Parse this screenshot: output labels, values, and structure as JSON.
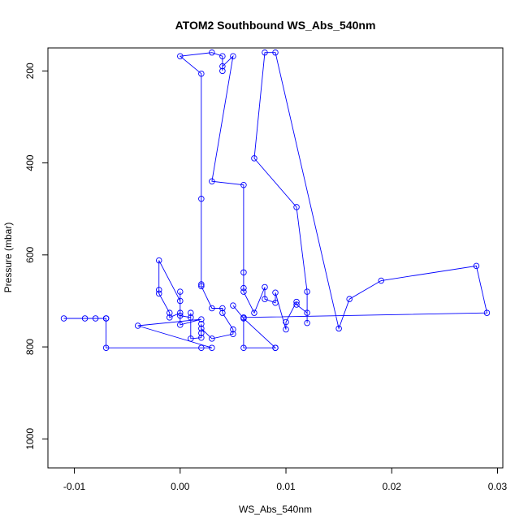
{
  "chart_data": {
    "type": "line",
    "title": "ATOM2 Southbound WS_Abs_540nm",
    "xlabel": "WS_Abs_540nm",
    "ylabel": "Pressure (mbar)",
    "xlim": [
      -0.0125,
      0.0305
    ],
    "ylim": [
      1063,
      150
    ],
    "y_reversed": true,
    "xticks": [
      "-0.01",
      "0.00",
      "0.01",
      "0.02",
      "0.03"
    ],
    "yticks": [
      "200",
      "400",
      "600",
      "800",
      "1000"
    ],
    "color": "#0000ff",
    "marker": "open-circle",
    "grid": false,
    "legend": "none",
    "series": [
      {
        "values": [
          [
            -0.011,
            738
          ],
          [
            -0.009,
            738
          ],
          [
            -0.008,
            738
          ],
          [
            -0.007,
            738
          ],
          [
            -0.007,
            738
          ],
          [
            -0.007,
            802
          ],
          [
            0.002,
            802
          ],
          [
            0.003,
            802
          ],
          [
            -0.004,
            754
          ],
          [
            0.002,
            740
          ],
          [
            0.0,
            752
          ],
          [
            0.0,
            680
          ],
          [
            0.0,
            700
          ],
          [
            -0.002,
            612
          ],
          [
            -0.002,
            676
          ],
          [
            -0.002,
            684
          ],
          [
            -0.001,
            726
          ],
          [
            -0.001,
            736
          ],
          [
            0.0,
            726
          ],
          [
            0.0,
            732
          ],
          [
            0.001,
            736
          ],
          [
            0.001,
            726
          ],
          [
            0.001,
            782
          ],
          [
            0.002,
            780
          ],
          [
            0.002,
            770
          ],
          [
            0.002,
            750
          ],
          [
            0.002,
            760
          ],
          [
            0.003,
            782
          ],
          [
            0.005,
            772
          ],
          [
            0.005,
            762
          ],
          [
            0.004,
            726
          ],
          [
            0.004,
            716
          ],
          [
            0.003,
            716
          ],
          [
            0.002,
            668
          ],
          [
            0.002,
            664
          ],
          [
            0.002,
            478
          ],
          [
            0.002,
            206
          ],
          [
            0.0,
            168
          ],
          [
            0.003,
            160
          ],
          [
            0.004,
            168
          ],
          [
            0.004,
            200
          ],
          [
            0.004,
            190
          ],
          [
            0.005,
            168
          ],
          [
            0.003,
            440
          ],
          [
            0.006,
            448
          ],
          [
            0.006,
            638
          ],
          [
            0.006,
            672
          ],
          [
            0.006,
            680
          ],
          [
            0.007,
            726
          ],
          [
            0.008,
            670
          ],
          [
            0.008,
            696
          ],
          [
            0.009,
            704
          ],
          [
            0.009,
            682
          ],
          [
            0.01,
            762
          ],
          [
            0.01,
            746
          ],
          [
            0.011,
            702
          ],
          [
            0.011,
            708
          ],
          [
            0.012,
            726
          ],
          [
            0.012,
            748
          ],
          [
            0.012,
            680
          ],
          [
            0.011,
            496
          ],
          [
            0.007,
            390
          ],
          [
            0.008,
            160
          ],
          [
            0.009,
            160
          ],
          [
            0.015,
            760
          ],
          [
            0.016,
            696
          ],
          [
            0.019,
            656
          ],
          [
            0.028,
            624
          ],
          [
            0.029,
            726
          ],
          [
            0.006,
            736
          ],
          [
            0.006,
            802
          ],
          [
            0.009,
            802
          ],
          [
            0.009,
            802
          ],
          [
            0.006,
            738
          ],
          [
            0.005,
            710
          ]
        ]
      }
    ]
  }
}
